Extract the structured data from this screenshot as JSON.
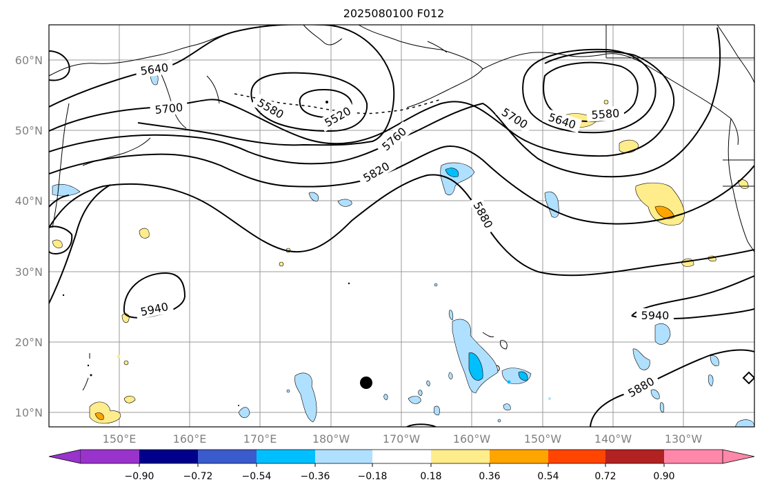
{
  "title": "2025080100 F012",
  "map": {
    "lat_labels": [
      "10°N",
      "20°N",
      "30°N",
      "40°N",
      "50°N",
      "60°N"
    ],
    "lon_labels": [
      "150°E",
      "160°E",
      "170°E",
      "180°W",
      "170°W",
      "160°W",
      "150°W",
      "140°W",
      "130°W"
    ],
    "contour_labels": [
      "5640",
      "5700",
      "5580",
      "5520",
      "5760",
      "5820",
      "5880",
      "5700",
      "5640",
      "5580",
      "5940",
      "5940",
      "5880"
    ],
    "marker": "black-dot"
  },
  "colorbar": {
    "colors": [
      "#9933cc",
      "#00008b",
      "#3a5bcc",
      "#00bfff",
      "#b0e0ff",
      "#ffffff",
      "#ffec8b",
      "#ffa500",
      "#ff4500",
      "#b22222",
      "#ff88aa"
    ],
    "tick_labels": [
      "−0.90",
      "−0.72",
      "−0.54",
      "−0.36",
      "−0.18",
      "0.18",
      "0.36",
      "0.54",
      "0.72",
      "0.90"
    ]
  }
}
